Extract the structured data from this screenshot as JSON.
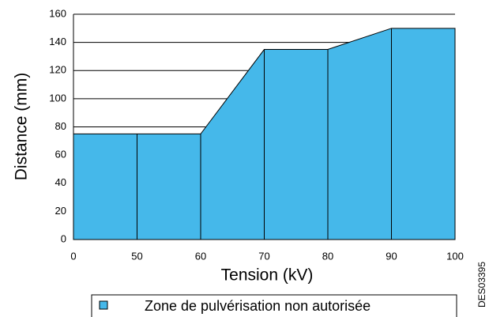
{
  "chart_data": {
    "type": "area",
    "x_label": "Tension (kV)",
    "y_label": "Distance (mm)",
    "categories": [
      "0",
      "50",
      "60",
      "70",
      "80",
      "90",
      "100"
    ],
    "series": [
      {
        "name": "Zone de pulvérisation non autorisée",
        "color": "#45b8ea",
        "values": [
          75,
          75,
          75,
          135,
          135,
          150,
          150
        ]
      }
    ],
    "ylim": [
      0,
      160
    ],
    "yticks": [
      0,
      20,
      40,
      60,
      80,
      100,
      120,
      140,
      160
    ],
    "grid": true,
    "legend": "bottom",
    "annotation": "DES03395"
  }
}
